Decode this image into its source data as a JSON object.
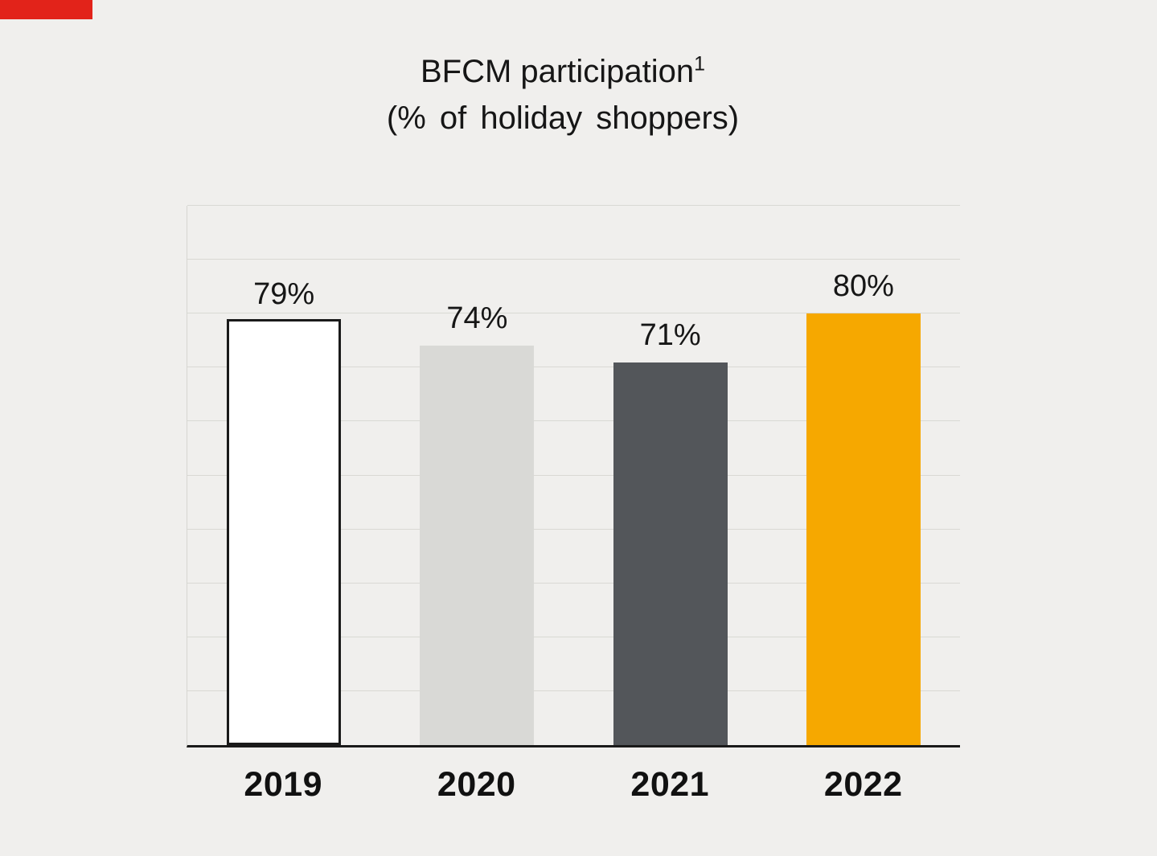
{
  "decorations": {
    "accent_bar_color": "#e2231a"
  },
  "chart_data": {
    "type": "bar",
    "title": "BFCM participation",
    "title_superscript": "1",
    "subtitle": "(% of holiday shoppers)",
    "categories": [
      "2019",
      "2020",
      "2021",
      "2022"
    ],
    "values": [
      79,
      74,
      71,
      80
    ],
    "value_labels": [
      "79%",
      "74%",
      "71%",
      "80%"
    ],
    "ylim": [
      0,
      100
    ],
    "gridline_interval": 10,
    "grid": true,
    "legend": "none",
    "background_color": "#f0efed",
    "gridline_color": "#d9d9d4",
    "baseline_color": "#1a1a1a",
    "bar_colors": [
      "#ffffff",
      "#d9d9d6",
      "#53565a",
      "#f6a800"
    ],
    "bar_border_colors": [
      "#1a1a1a",
      "none",
      "none",
      "none"
    ]
  }
}
